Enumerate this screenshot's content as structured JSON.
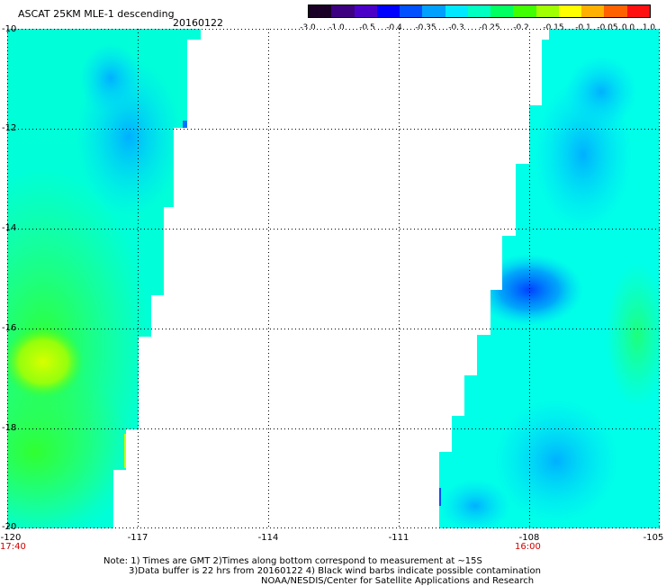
{
  "header": {
    "title": "ASCAT 25KM MLE-1 descending",
    "date": "20160122"
  },
  "colorbar": {
    "labels": [
      "-3.0",
      "-1.0",
      "-0.5",
      "-0.4",
      "-0.35",
      "-0.3",
      "-0.25",
      "-0.2",
      "-0.15",
      "-0.1",
      "-0.05",
      "0.0",
      "1.0"
    ],
    "colors": [
      "#1a0026",
      "#3d0080",
      "#4b00c8",
      "#0000ff",
      "#0050ff",
      "#00a0ff",
      "#00e8ff",
      "#00ffc0",
      "#00ff60",
      "#40ff00",
      "#a0ff00",
      "#ffff00",
      "#ffb000",
      "#ff6000",
      "#ff1010"
    ]
  },
  "axes": {
    "y_ticks": [
      "-10",
      "-12",
      "-14",
      "-16",
      "-18",
      "-20"
    ],
    "x_ticks": [
      "-120",
      "-117",
      "-114",
      "-111",
      "-108",
      "-105"
    ],
    "times": [
      "17:40",
      "16:00"
    ]
  },
  "notes": {
    "line1": "Note: 1) Times are GMT 2)Times along bottom correspond to measurement at ~15S",
    "line2": "3)Data buffer is 22 hrs from 20160122 4) Black wind barbs indicate possible contamination",
    "line3": "NOAA/NESDIS/Center for Satellite Applications and Research"
  },
  "map_style": {
    "swath_base_color": "#00ffe8",
    "background": "#ffffff",
    "grid_color": "#000000"
  }
}
